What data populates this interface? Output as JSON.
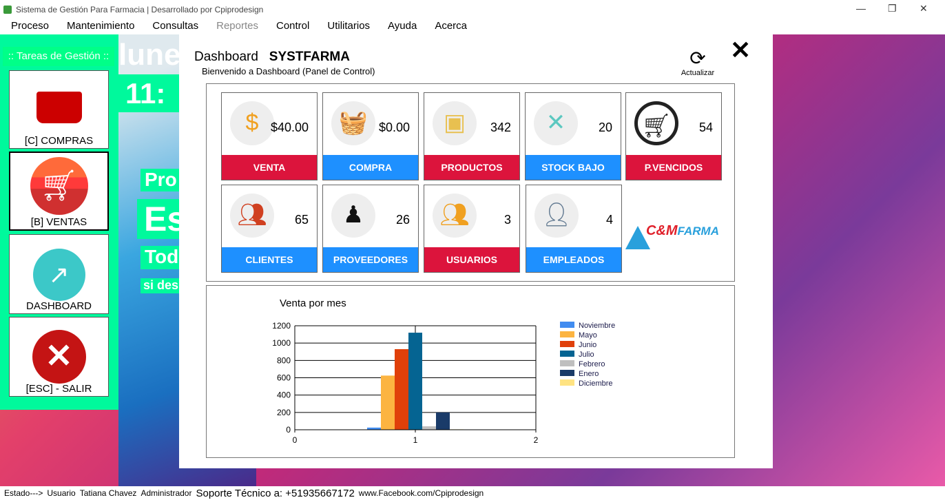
{
  "window": {
    "title": "Sistema de Gestión Para Farmacia | Desarrollado por Cpiprodesign"
  },
  "menu": [
    "Proceso",
    "Mantenimiento",
    "Consultas",
    "Reportes",
    "Control",
    "Utilitarios",
    "Ayuda",
    "Acerca"
  ],
  "sidebar": {
    "header": ":: Tareas de Gestión ::",
    "items": [
      "[C] COMPRAS",
      "[B] VENTAS",
      "DASHBOARD",
      "[ESC] - SALIR"
    ]
  },
  "background": {
    "day": "lune",
    "time": "11:",
    "line1": "Pro",
    "line2": "Es",
    "line3": "Tod",
    "line4": "si des"
  },
  "dashboard": {
    "title": "Dashboard",
    "brand": "SYSTFARMA",
    "subtitle": "Bienvenido a Dashboard (Panel de Control)",
    "refresh": "Actualizar",
    "cards": [
      {
        "label": "VENTA",
        "value": "$40.00",
        "color": "red"
      },
      {
        "label": "COMPRA",
        "value": "$0.00",
        "color": "blue"
      },
      {
        "label": "PRODUCTOS",
        "value": "342",
        "color": "red"
      },
      {
        "label": "STOCK BAJO",
        "value": "20",
        "color": "blue"
      },
      {
        "label": "P.VENCIDOS",
        "value": "54",
        "color": "red"
      },
      {
        "label": "CLIENTES",
        "value": "65",
        "color": "blue"
      },
      {
        "label": "PROVEEDORES",
        "value": "26",
        "color": "blue"
      },
      {
        "label": "USUARIOS",
        "value": "3",
        "color": "red"
      },
      {
        "label": "EMPLEADOS",
        "value": "4",
        "color": "blue"
      }
    ],
    "logo": "C&M FARMA"
  },
  "chart_data": {
    "type": "bar",
    "title": "Venta por mes",
    "x_ticks": [
      "0",
      "1",
      "2"
    ],
    "y_ticks": [
      "0",
      "200",
      "400",
      "600",
      "800",
      "1000",
      "1200"
    ],
    "ylim": [
      0,
      1200
    ],
    "xlim": [
      0,
      2
    ],
    "x": 1,
    "grid": true,
    "legend": "right",
    "series": [
      {
        "name": "Noviembre",
        "value": 25,
        "color": "#418cf0"
      },
      {
        "name": "Mayo",
        "value": 625,
        "color": "#fcb441"
      },
      {
        "name": "Junio",
        "value": 930,
        "color": "#e0400a"
      },
      {
        "name": "Julio",
        "value": 1120,
        "color": "#056492"
      },
      {
        "name": "Febrero",
        "value": 40,
        "color": "#bfbfbf"
      },
      {
        "name": "Enero",
        "value": 200,
        "color": "#1a3b69"
      },
      {
        "name": "Diciembre",
        "value": 5,
        "color": "#ffe382"
      }
    ]
  },
  "status": {
    "estado": "Estado--->",
    "usuario_label": "Usuario",
    "usuario": "Tatiana Chavez",
    "rol": "Administrador",
    "soporte": "Soporte Técnico a: +51935667172",
    "web": "www.Facebook.com/Cpiprodesign"
  }
}
